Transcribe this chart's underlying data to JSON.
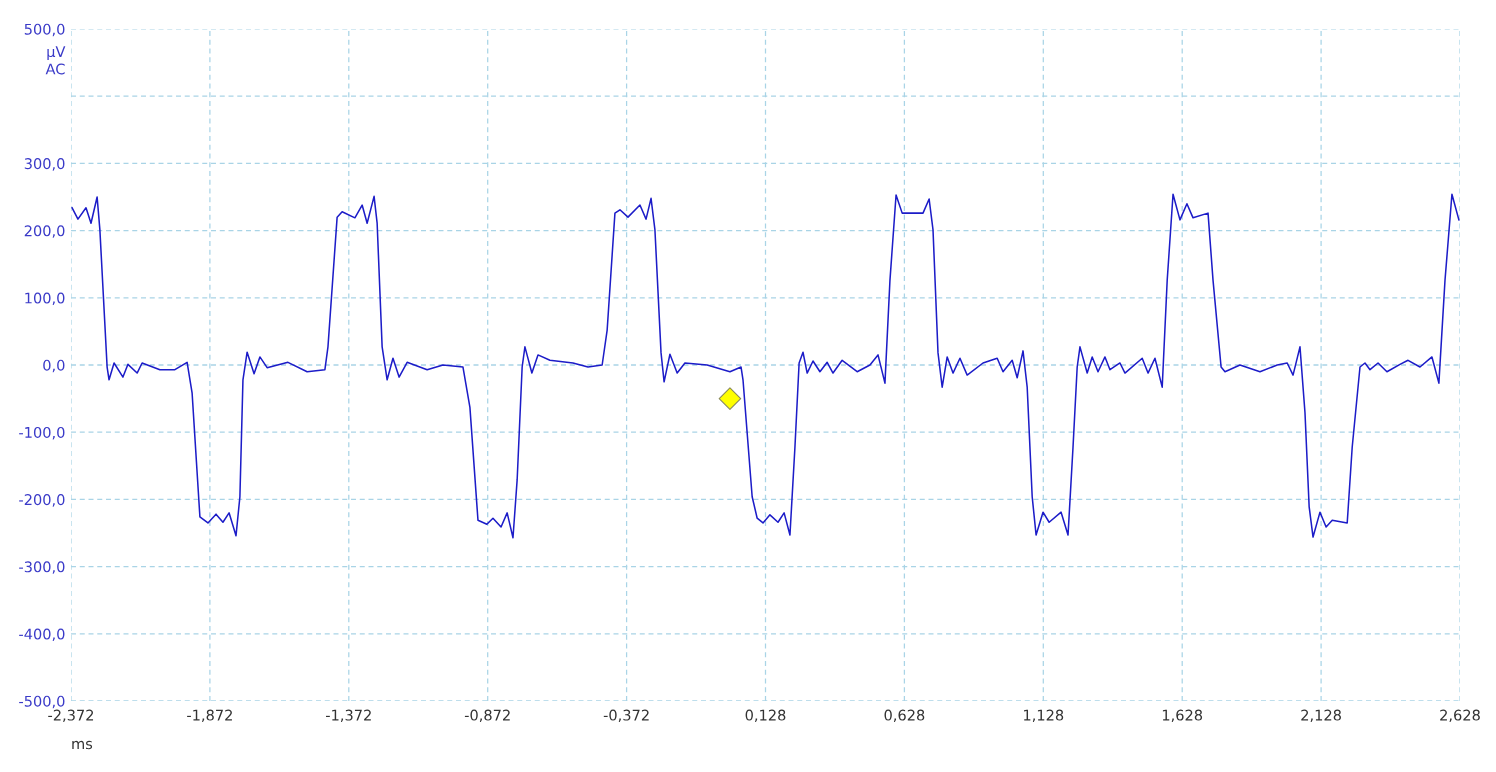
{
  "chart_data": {
    "type": "line",
    "xlabel": "ms",
    "ylabel": "µV\nAC",
    "xlim": [
      -2.372,
      2.628
    ],
    "xticks": [
      {
        "value": -2.372,
        "label": "-2,372"
      },
      {
        "value": -1.872,
        "label": "-1,872"
      },
      {
        "value": -1.372,
        "label": "-1,372"
      },
      {
        "value": -0.872,
        "label": "-0,872"
      },
      {
        "value": -0.372,
        "label": "-0,372"
      },
      {
        "value": 0.128,
        "label": "0,128"
      },
      {
        "value": 0.628,
        "label": "0,628"
      },
      {
        "value": 1.128,
        "label": "1,128"
      },
      {
        "value": 1.628,
        "label": "1,628"
      },
      {
        "value": 2.128,
        "label": "2,128"
      },
      {
        "value": 2.628,
        "label": "2,628"
      }
    ],
    "ylim": [
      -500,
      500
    ],
    "yticks": [
      {
        "value": -500,
        "label": "-500,0"
      },
      {
        "value": -400,
        "label": "-400,0"
      },
      {
        "value": -300,
        "label": "-300,0"
      },
      {
        "value": -200,
        "label": "-200,0"
      },
      {
        "value": -100,
        "label": "-100,0"
      },
      {
        "value": 0,
        "label": "0,0"
      },
      {
        "value": 100,
        "label": "100,0"
      },
      {
        "value": 200,
        "label": "200,0"
      },
      {
        "value": 300,
        "label": "300,0"
      },
      {
        "value": 400,
        "label": null
      },
      {
        "value": 500,
        "label": "500,0"
      }
    ],
    "grid": true,
    "legend": false,
    "series": [
      {
        "color": "#1c1cc8",
        "marker": "none",
        "line_style": "solid",
        "x": [
          -2.368,
          -2.347,
          -2.318,
          -2.3,
          -2.278,
          -2.268,
          -2.242,
          -2.235,
          -2.217,
          -2.185,
          -2.167,
          -2.134,
          -2.116,
          -2.052,
          -1.998,
          -1.954,
          -1.936,
          -1.908,
          -1.879,
          -1.85,
          -1.825,
          -1.803,
          -1.778,
          -1.764,
          -1.753,
          -1.738,
          -1.713,
          -1.692,
          -1.666,
          -1.591,
          -1.522,
          -1.458,
          -1.447,
          -1.414,
          -1.396,
          -1.35,
          -1.324,
          -1.306,
          -1.281,
          -1.27,
          -1.252,
          -1.234,
          -1.213,
          -1.191,
          -1.162,
          -1.09,
          -1.033,
          -0.961,
          -0.936,
          -0.907,
          -0.875,
          -0.853,
          -0.824,
          -0.802,
          -0.781,
          -0.766,
          -0.748,
          -0.738,
          -0.713,
          -0.691,
          -0.648,
          -0.565,
          -0.511,
          -0.46,
          -0.442,
          -0.414,
          -0.396,
          -0.367,
          -0.324,
          -0.302,
          -0.284,
          -0.27,
          -0.248,
          -0.237,
          -0.216,
          -0.19,
          -0.162,
          -0.082,
          0.0,
          0.04,
          0.047,
          0.08,
          0.098,
          0.119,
          0.144,
          0.173,
          0.195,
          0.216,
          0.234,
          0.249,
          0.263,
          0.278,
          0.299,
          0.324,
          0.35,
          0.371,
          0.404,
          0.458,
          0.504,
          0.533,
          0.558,
          0.576,
          0.598,
          0.62,
          0.674,
          0.695,
          0.717,
          0.731,
          0.749,
          0.764,
          0.782,
          0.803,
          0.828,
          0.854,
          0.911,
          0.962,
          0.983,
          1.016,
          1.034,
          1.055,
          1.07,
          1.088,
          1.102,
          1.127,
          1.149,
          1.192,
          1.217,
          1.235,
          1.25,
          1.26,
          1.286,
          1.304,
          1.325,
          1.35,
          1.368,
          1.404,
          1.422,
          1.484,
          1.505,
          1.53,
          1.556,
          1.574,
          1.595,
          1.62,
          1.645,
          1.667,
          1.721,
          1.739,
          1.768,
          1.782,
          1.836,
          1.908,
          1.97,
          2.006,
          2.027,
          2.052,
          2.07,
          2.085,
          2.099,
          2.124,
          2.146,
          2.168,
          2.222,
          2.24,
          2.268,
          2.286,
          2.304,
          2.333,
          2.365,
          2.412,
          2.441,
          2.484,
          2.527,
          2.552,
          2.574,
          2.599,
          2.624
        ],
        "values": [
          234,
          217,
          234,
          211,
          250,
          201,
          -3,
          -22,
          3,
          -18,
          1,
          -12,
          3,
          -7,
          -7,
          4,
          -42,
          -226,
          -235,
          -222,
          -234,
          -220,
          -254,
          -196,
          -22,
          19,
          -13,
          12,
          -4,
          4,
          -10,
          -7,
          27,
          220,
          228,
          219,
          238,
          211,
          251,
          211,
          27,
          -22,
          10,
          -18,
          4,
          -7,
          0,
          -3,
          -63,
          -231,
          -237,
          -228,
          -241,
          -220,
          -257,
          -171,
          -3,
          27,
          -12,
          15,
          7,
          3,
          -3,
          0,
          52,
          226,
          231,
          220,
          238,
          217,
          248,
          201,
          18,
          -25,
          16,
          -12,
          3,
          0,
          -10,
          -3,
          -22,
          -196,
          -228,
          -235,
          -223,
          -234,
          -220,
          -253,
          -122,
          3,
          19,
          -12,
          6,
          -10,
          4,
          -12,
          7,
          -10,
          0,
          15,
          -27,
          126,
          253,
          226,
          226,
          226,
          247,
          201,
          18,
          -33,
          12,
          -12,
          10,
          -15,
          3,
          10,
          -10,
          7,
          -19,
          21,
          -33,
          -196,
          -253,
          -219,
          -234,
          -219,
          -253,
          -122,
          -3,
          27,
          -12,
          12,
          -10,
          12,
          -7,
          3,
          -12,
          10,
          -12,
          10,
          -33,
          126,
          254,
          216,
          240,
          219,
          226,
          126,
          -3,
          -10,
          0,
          -10,
          0,
          3,
          -15,
          27,
          -71,
          -211,
          -256,
          -219,
          -241,
          -231,
          -235,
          -122,
          -3,
          3,
          -7,
          3,
          -10,
          1,
          7,
          -3,
          12,
          -27,
          126,
          254,
          216
        ]
      },
      {
        "type": "scatter",
        "color": "#ffff00",
        "marker": "diamond",
        "x": [
          0.0
        ],
        "values": [
          -50
        ]
      }
    ]
  }
}
